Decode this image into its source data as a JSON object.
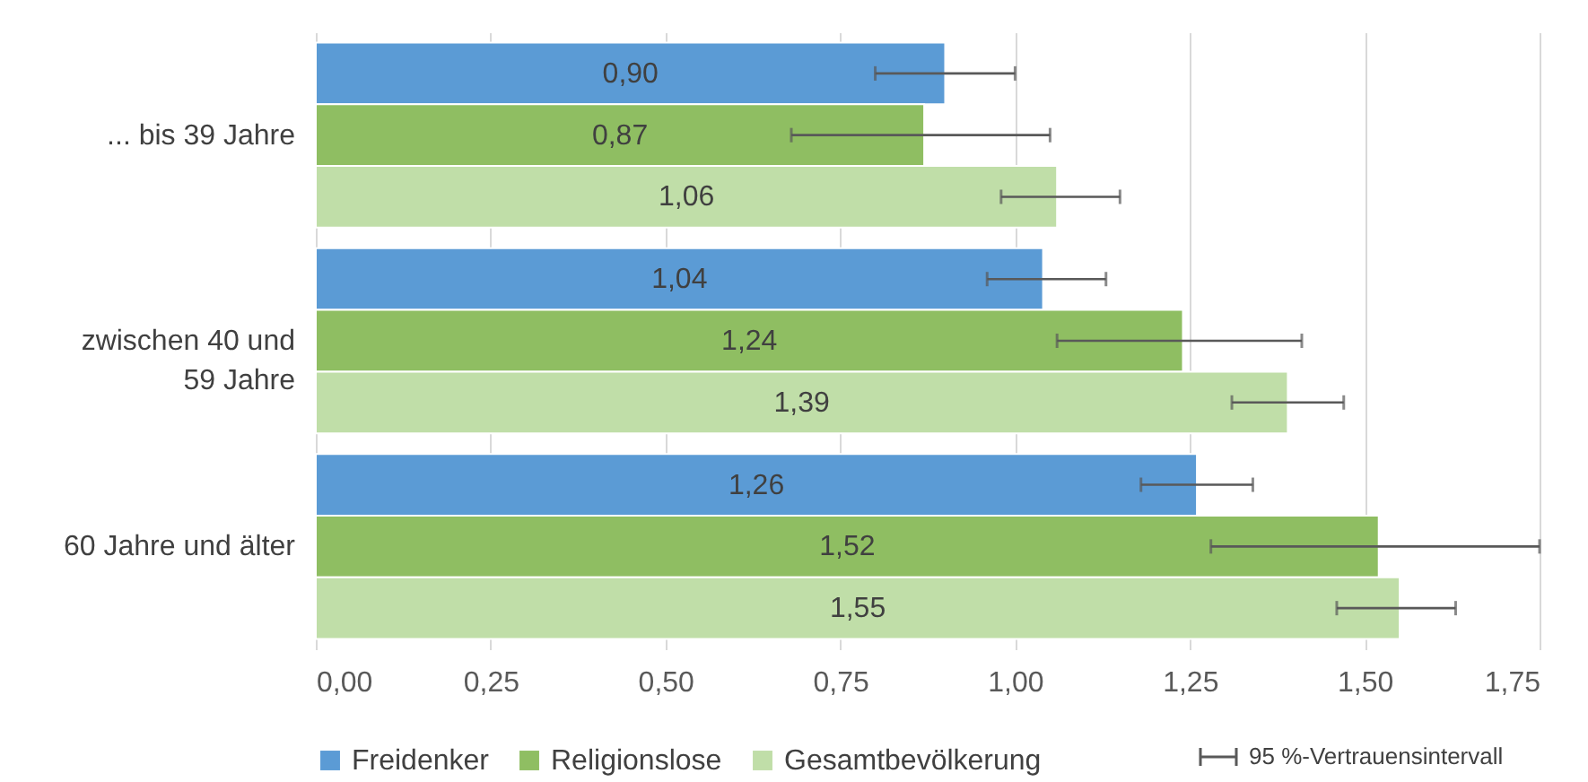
{
  "chart_data": {
    "type": "bar",
    "orientation": "horizontal",
    "categories": [
      "... bis 39 Jahre",
      "zwischen 40 und 59 Jahre",
      "60 Jahre und älter"
    ],
    "series": [
      {
        "name": "Freidenker",
        "color": "#5b9bd5",
        "values": [
          0.9,
          1.04,
          1.26
        ],
        "value_labels": [
          "0,90",
          "1,04",
          "1,26"
        ],
        "errors": [
          [
            0.8,
            1.0
          ],
          [
            0.96,
            1.13
          ],
          [
            1.18,
            1.34
          ]
        ]
      },
      {
        "name": "Religionslose",
        "color": "#8fbe62",
        "values": [
          0.87,
          1.24,
          1.52
        ],
        "value_labels": [
          "0,87",
          "1,24",
          "1,52"
        ],
        "errors": [
          [
            0.68,
            1.05
          ],
          [
            1.06,
            1.41
          ],
          [
            1.28,
            1.75
          ]
        ]
      },
      {
        "name": "Gesamtbevölkerung",
        "color": "#c0dea8",
        "values": [
          1.06,
          1.39,
          1.55
        ],
        "value_labels": [
          "1,06",
          "1,39",
          "1,55"
        ],
        "errors": [
          [
            0.98,
            1.15
          ],
          [
            1.31,
            1.47
          ],
          [
            1.46,
            1.63
          ]
        ]
      }
    ],
    "xlim": [
      0,
      1.75
    ],
    "xticks": [
      {
        "value": 0,
        "label": "0,00"
      },
      {
        "value": 0.25,
        "label": "0,25"
      },
      {
        "value": 0.5,
        "label": "0,50"
      },
      {
        "value": 0.75,
        "label": "0,75"
      },
      {
        "value": 1,
        "label": "1,00"
      },
      {
        "value": 1.25,
        "label": "1,25"
      },
      {
        "value": 1.5,
        "label": "1,50"
      },
      {
        "value": 1.75,
        "label": "1,75"
      }
    ],
    "grid": "x",
    "legend": "bottom",
    "annotations": [
      "95 %-Vertrauensintervall"
    ]
  }
}
